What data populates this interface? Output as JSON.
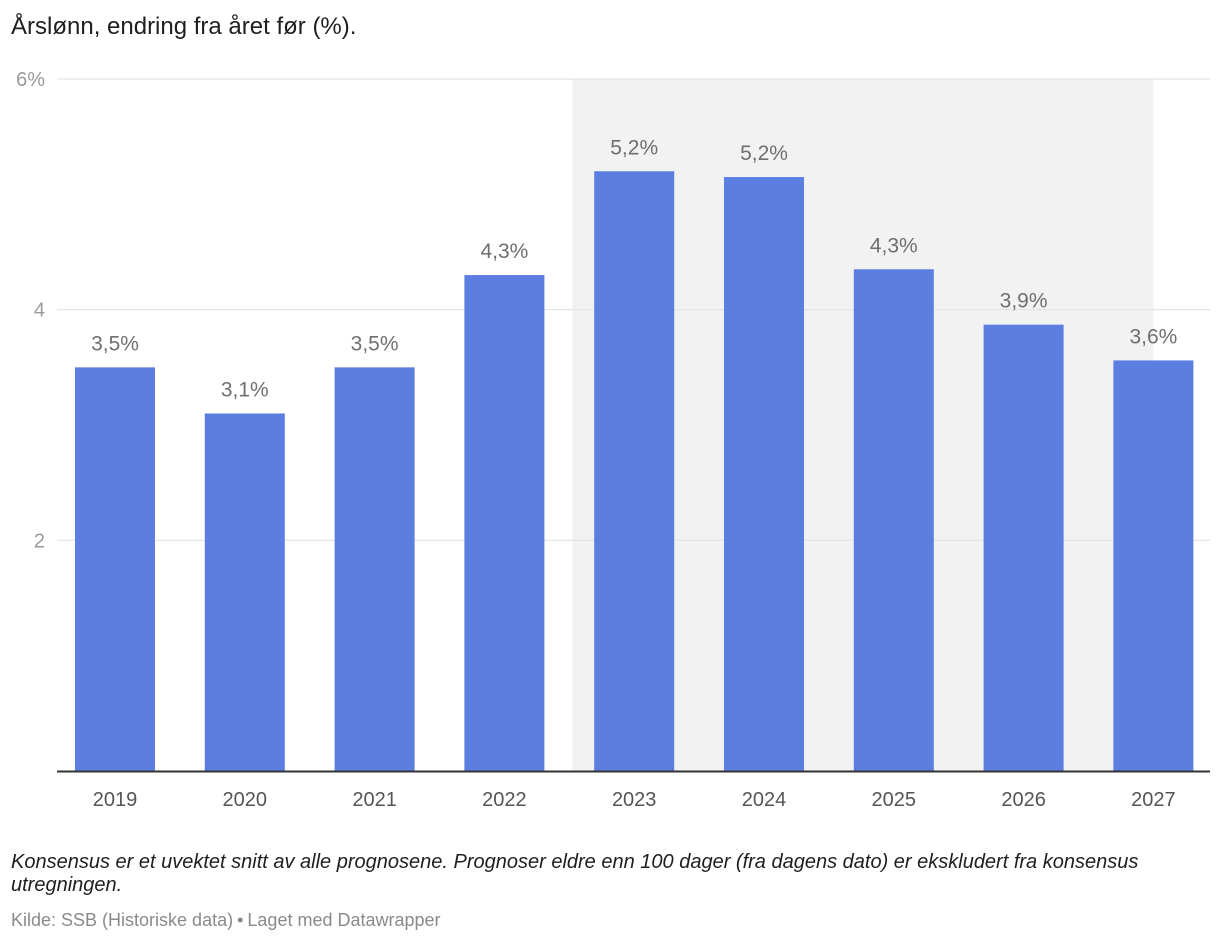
{
  "chart_data": {
    "type": "bar",
    "title": "Årslønn, endring fra året før (%).",
    "categories": [
      "2019",
      "2020",
      "2021",
      "2022",
      "2023",
      "2024",
      "2025",
      "2026",
      "2027"
    ],
    "values": [
      3.5,
      3.1,
      3.5,
      4.3,
      5.2,
      5.15,
      4.35,
      3.87,
      3.56
    ],
    "data_labels": [
      "3,5%",
      "3,1%",
      "3,5%",
      "4,3%",
      "5,2%",
      "5,2%",
      "4,3%",
      "3,9%",
      "3,6%"
    ],
    "y_ticks": [
      {
        "value": 2,
        "label": "2"
      },
      {
        "value": 4,
        "label": "4"
      },
      {
        "value": 6,
        "label": "6%"
      }
    ],
    "ylim": [
      0,
      6
    ],
    "xlabel": "",
    "ylabel": "",
    "grid": true,
    "highlight_range": {
      "from": "2023",
      "to": "2027",
      "label": ""
    },
    "colors": {
      "bar": "#5b7ee0",
      "highlight": "#f2f2f2",
      "grid": "#e3e3e3",
      "axis": "#333333",
      "tick_text": "#9a9a9a",
      "label_text": "#6f6f6f"
    }
  },
  "note": "Konsensus er et uvektet snitt av alle prognosene. Prognoser eldre enn 100 dager (fra dagens dato) er ekskludert fra konsensus utregningen.",
  "source": {
    "text": "Kilde: SSB (Historiske data)",
    "separator": "•",
    "credit": "Laget med Datawrapper"
  }
}
